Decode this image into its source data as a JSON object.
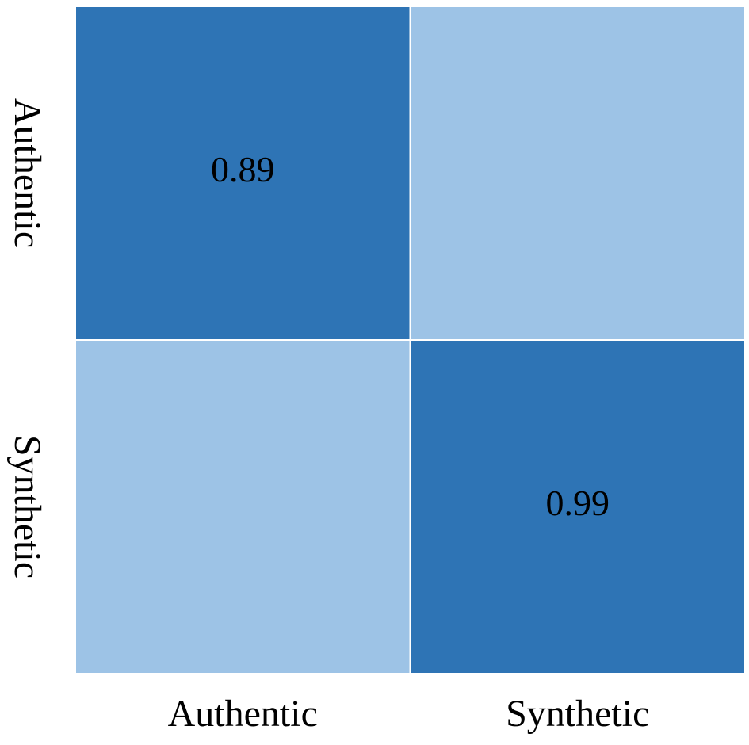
{
  "chart_data": {
    "type": "heatmap",
    "x_categories": [
      "Authentic",
      "Synthetic"
    ],
    "y_categories": [
      "Authentic",
      "Synthetic"
    ],
    "values": [
      [
        0.89,
        null
      ],
      [
        null,
        0.99
      ]
    ],
    "colors": [
      [
        "#2e74b5",
        "#9dc3e6"
      ],
      [
        "#9dc3e6",
        "#2e74b5"
      ]
    ]
  }
}
